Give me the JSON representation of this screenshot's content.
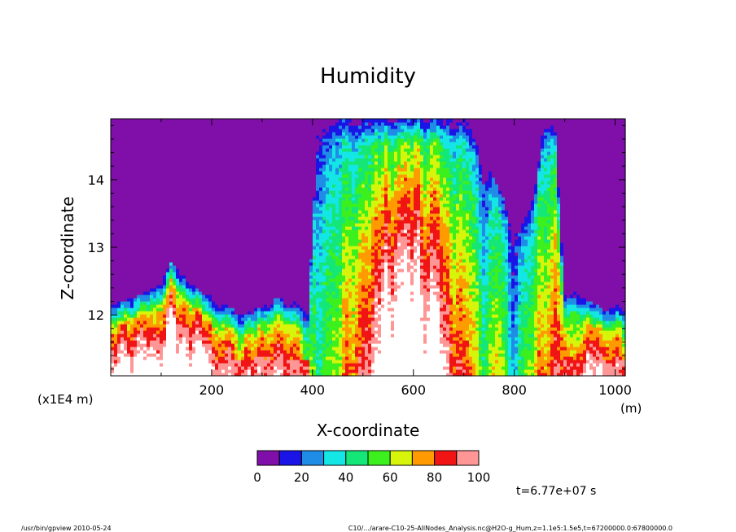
{
  "chart_data": {
    "type": "heatmap",
    "title": "Humidity",
    "xlabel": "X-coordinate",
    "ylabel": "Z-coordinate",
    "x_unit": "(m)",
    "y_unit": "(x1E4 m)",
    "xlim": [
      0,
      1020
    ],
    "ylim": [
      11.1,
      14.9
    ],
    "x_ticks": [
      200,
      400,
      600,
      800,
      1000
    ],
    "y_ticks": [
      12,
      13,
      14
    ],
    "colorbar": {
      "levels": [
        0,
        10,
        20,
        30,
        40,
        50,
        60,
        70,
        80,
        90,
        100
      ],
      "tick_labels": [
        0,
        20,
        40,
        60,
        80,
        100
      ],
      "colors": [
        "#7f0fa8",
        "#1a14e6",
        "#1f8ce6",
        "#14e6e6",
        "#14e678",
        "#3cf01e",
        "#d7f50a",
        "#ff9b00",
        "#f01414",
        "#ff9696"
      ],
      "over_color": "#ffffff"
    },
    "field_profile": {
      "x_knots": [
        0,
        60,
        100,
        120,
        140,
        180,
        220,
        260,
        300,
        330,
        360,
        390,
        410,
        430,
        450,
        470,
        490,
        520,
        540,
        560,
        580,
        600,
        620,
        640,
        660,
        680,
        700,
        720,
        740,
        760,
        780,
        800,
        820,
        840,
        860,
        880,
        900,
        920,
        950,
        980,
        1020
      ],
      "z_top_knots": [
        12.15,
        12.3,
        12.5,
        12.8,
        12.6,
        12.35,
        12.2,
        12.0,
        12.15,
        12.3,
        12.2,
        12.1,
        14.9,
        14.9,
        14.9,
        14.9,
        14.9,
        14.9,
        14.9,
        14.9,
        14.9,
        14.9,
        14.9,
        14.9,
        14.9,
        14.9,
        14.9,
        14.7,
        14.3,
        14.0,
        13.7,
        13.5,
        13.4,
        13.8,
        14.9,
        14.9,
        12.3,
        12.4,
        12.2,
        12.1,
        12.2
      ],
      "intensity_knots": [
        0.95,
        1.0,
        1.05,
        1.15,
        1.1,
        1.05,
        0.95,
        0.75,
        0.9,
        0.95,
        0.9,
        0.7,
        0.5,
        0.6,
        0.5,
        0.7,
        0.8,
        0.9,
        1.05,
        1.1,
        1.15,
        1.1,
        1.05,
        1.0,
        0.95,
        0.85,
        0.75,
        0.65,
        0.55,
        0.5,
        0.45,
        0.4,
        0.45,
        0.55,
        0.7,
        0.85,
        0.8,
        0.85,
        0.9,
        0.9,
        0.9
      ]
    }
  },
  "annotations": {
    "time": "t=6.77e+07 s",
    "footer_left": "/usr/bin/gpview  2010-05-24",
    "footer_right": "C10/.../arare-C10-25-AllNodes_Analysis.nc@H2O-g_Hum,z=1.1e5:1.5e5,t=67200000.0:67800000.0"
  }
}
